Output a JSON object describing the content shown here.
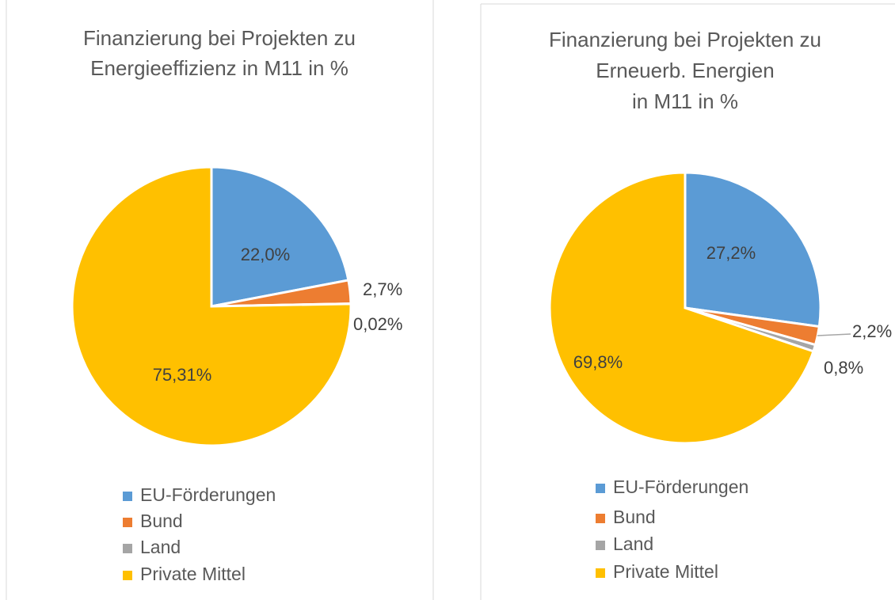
{
  "chart_data": [
    {
      "type": "pie",
      "title": [
        "Finanzierung bei Projekten zu",
        "Energieeffizienz in M11 in %"
      ],
      "categories": [
        "EU-Förderungen",
        "Bund",
        "Land",
        "Private Mittel"
      ],
      "values": [
        22.0,
        2.7,
        0.02,
        75.31
      ],
      "value_labels": [
        "22,0%",
        "2,7%",
        "0,02%",
        "75,31%"
      ],
      "colors": [
        "#5b9bd5",
        "#ed7d31",
        "#a5a5a5",
        "#ffc000"
      ],
      "legend": "bottom"
    },
    {
      "type": "pie",
      "title": [
        "Finanzierung bei Projekten zu",
        "Erneuerb. Energien",
        "in M11 in %"
      ],
      "categories": [
        "EU-Förderungen",
        "Bund",
        "Land",
        "Private Mittel"
      ],
      "values": [
        27.2,
        2.2,
        0.8,
        69.8
      ],
      "value_labels": [
        "27,2%",
        "2,2%",
        "0,8%",
        "69,8%"
      ],
      "colors": [
        "#5b9bd5",
        "#ed7d31",
        "#a5a5a5",
        "#ffc000"
      ],
      "legend": "bottom"
    }
  ]
}
